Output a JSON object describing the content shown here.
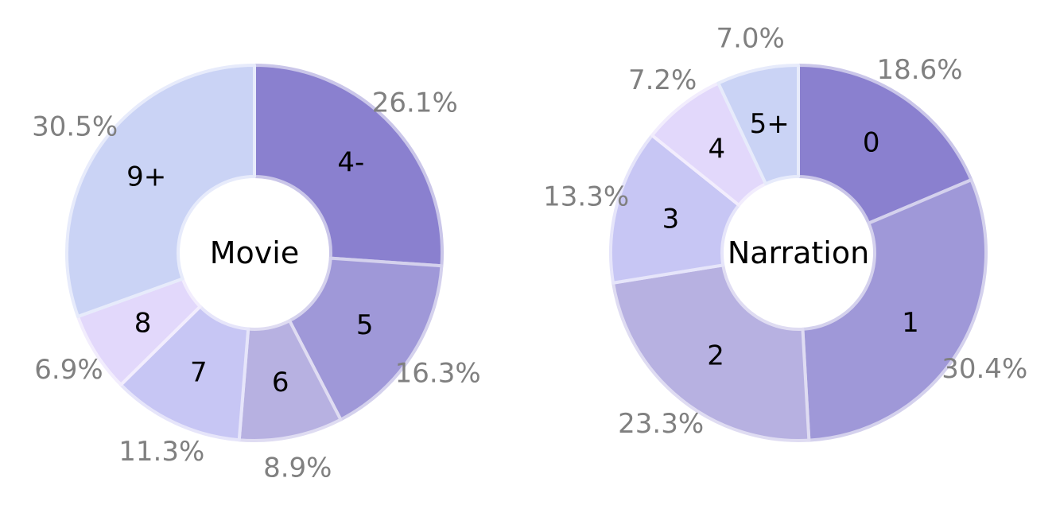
{
  "chart_data": [
    {
      "type": "pie",
      "title": "Movie",
      "center_label": "Movie",
      "start_angle_deg": 90,
      "direction": "clockwise",
      "slices": [
        {
          "label": "4-",
          "value": 26.1,
          "pct_label": "26.1%",
          "color": "#8a80cf"
        },
        {
          "label": "5",
          "value": 16.3,
          "pct_label": "16.3%",
          "color": "#9f98d8"
        },
        {
          "label": "6",
          "value": 8.9,
          "pct_label": "8.9%",
          "color": "#b7b1e1"
        },
        {
          "label": "7",
          "value": 11.3,
          "pct_label": "11.3%",
          "color": "#c7c6f4"
        },
        {
          "label": "8",
          "value": 6.9,
          "pct_label": "6.9%",
          "color": "#e2d8fb"
        },
        {
          "label": "9+",
          "value": 30.5,
          "pct_label": "30.5%",
          "color": "#cad3f5"
        }
      ]
    },
    {
      "type": "pie",
      "title": "Narration",
      "center_label": "Narration",
      "start_angle_deg": 90,
      "direction": "clockwise",
      "slices": [
        {
          "label": "0",
          "value": 18.6,
          "pct_label": "18.6%",
          "color": "#8a80cf"
        },
        {
          "label": "1",
          "value": 30.4,
          "pct_label": "30.4%",
          "color": "#9f98d8"
        },
        {
          "label": "2",
          "value": 23.3,
          "pct_label": "23.3%",
          "color": "#b7b1e1"
        },
        {
          "label": "3",
          "value": 13.3,
          "pct_label": "13.3%",
          "color": "#c7c6f4"
        },
        {
          "label": "4",
          "value": 7.2,
          "pct_label": "7.2%",
          "color": "#e2d8fb"
        },
        {
          "label": "5+",
          "value": 7.0,
          "pct_label": "7.0%",
          "color": "#cad3f5"
        }
      ]
    }
  ]
}
